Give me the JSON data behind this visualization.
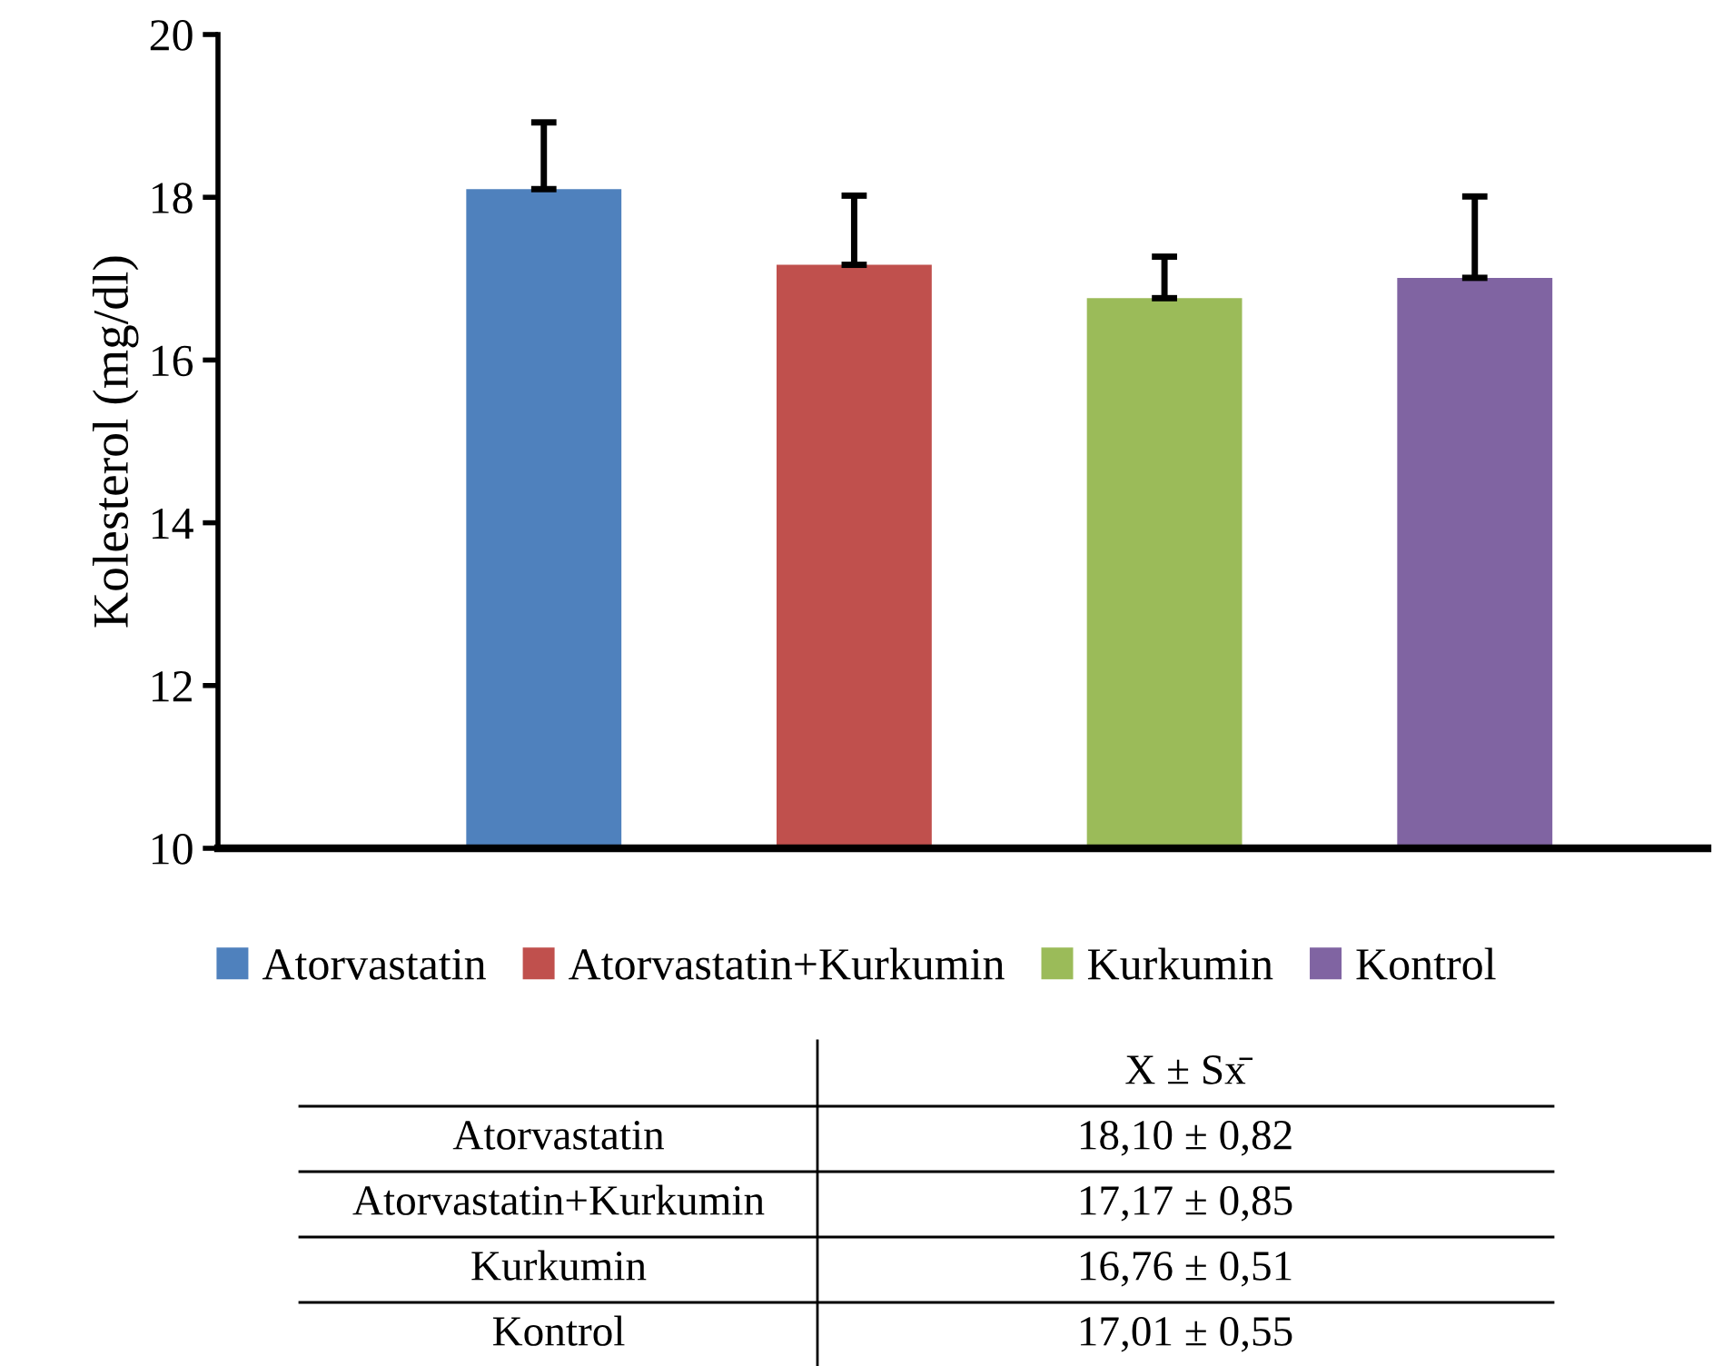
{
  "chart_data": {
    "type": "bar",
    "ylabel": "Kolesterol (mg/dl)",
    "categories": [
      null,
      null,
      null,
      null
    ],
    "series": [
      {
        "name": "Atorvastatin",
        "color": "#4f81bd",
        "values": [
          18.1,
          null,
          null,
          null
        ],
        "errors": [
          [
            18.1,
            18.92
          ],
          null,
          null,
          null
        ]
      },
      {
        "name": "Atorvastatin+Kurkumin",
        "color": "#c0504d",
        "values": [
          null,
          17.17,
          null,
          null
        ],
        "errors": [
          null,
          [
            17.17,
            18.02
          ],
          null,
          null
        ]
      },
      {
        "name": "Kurkumin",
        "color": "#9bbb59",
        "values": [
          null,
          null,
          16.76,
          null
        ],
        "errors": [
          null,
          null,
          [
            16.76,
            17.27
          ],
          null
        ]
      },
      {
        "name": "Kontrol",
        "color": "#8064a2",
        "values": [
          null,
          null,
          null,
          17.01
        ],
        "errors": [
          null,
          null,
          null,
          [
            17.01,
            18.01
          ]
        ]
      }
    ],
    "ylim": [
      10,
      20
    ],
    "yticks": [
      10,
      12,
      14,
      16,
      18,
      20
    ],
    "grid": false,
    "legend": "bottom",
    "tick_labels": "y",
    "annotations": [
      "X ± Sx̄",
      "18,10 ± 0,82",
      "17,17 ± 0,85",
      "16,76 ± 0,51",
      "17,01 ± 0,55"
    ]
  }
}
